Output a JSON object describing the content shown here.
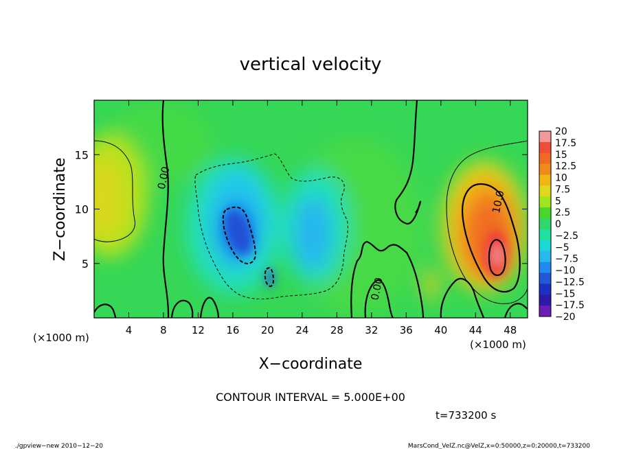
{
  "chart_data": {
    "type": "heatmap",
    "title": "vertical velocity",
    "xlabel": "X−coordinate",
    "ylabel": "Z−coordinate",
    "x_unit": "(×1000 m)",
    "y_unit": "(×1000 m)",
    "xlim": [
      0,
      50
    ],
    "ylim": [
      0,
      20
    ],
    "x_ticks": [
      "4",
      "8",
      "12",
      "16",
      "20",
      "24",
      "28",
      "32",
      "36",
      "40",
      "44",
      "48"
    ],
    "x_tick_values": [
      4,
      8,
      12,
      16,
      20,
      24,
      28,
      32,
      36,
      40,
      44,
      48
    ],
    "y_ticks": [
      "5",
      "10",
      "15"
    ],
    "y_tick_values": [
      5,
      10,
      15
    ],
    "contour_interval_text": "CONTOUR INTERVAL = 5.000E+00",
    "time_text": "t=733200 s",
    "contour_labels": [
      {
        "text": "0.00",
        "x": 8.4,
        "y": 12.8
      },
      {
        "text": "0.00",
        "x": 33.0,
        "y": 2.6
      },
      {
        "text": "10.0",
        "x": 47.0,
        "y": 10.6
      }
    ],
    "colorbar": {
      "levels": [
        "20",
        "17.5",
        "15",
        "12.5",
        "10",
        "7.5",
        "5",
        "2.5",
        "0",
        "−2.5",
        "−5",
        "−7.5",
        "−10",
        "−12.5",
        "−15",
        "−17.5",
        "−20"
      ],
      "colors": [
        "#f29a9a",
        "#ef4f3a",
        "#f06a22",
        "#f28a1a",
        "#f2b516",
        "#dfd81c",
        "#9ee61e",
        "#48d82a",
        "#2ed86a",
        "#1ee1a0",
        "#1ad8d6",
        "#28b8ef",
        "#1e8cf0",
        "#2158d8",
        "#1d30c4",
        "#3218a8",
        "#6e1cb8"
      ]
    }
  },
  "footer": {
    "left": "./gpview−new   2010−12−20",
    "right": "MarsCond_VelZ.nc@VelZ,x=0:50000,z=0:20000,t=733200"
  }
}
